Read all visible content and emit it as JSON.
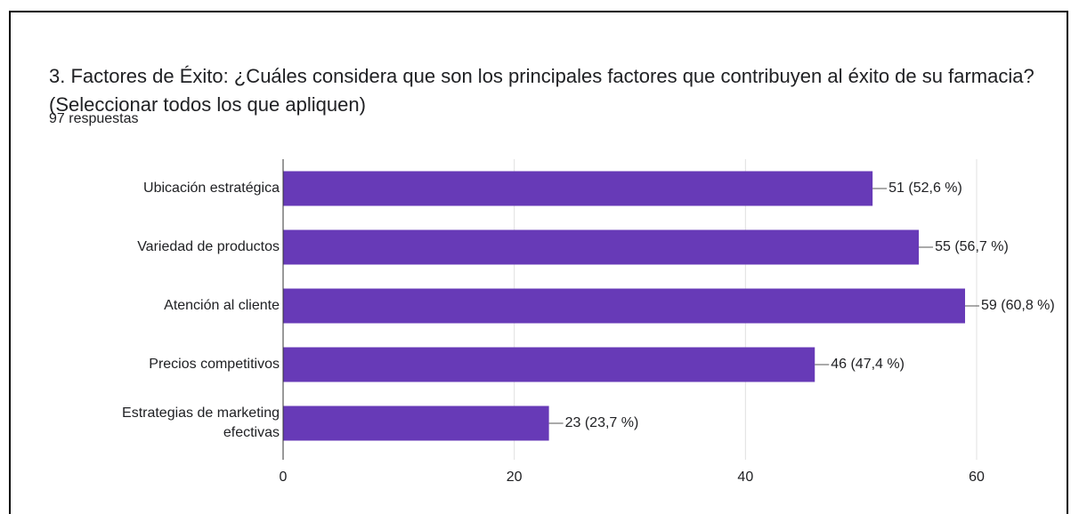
{
  "chart_data": {
    "type": "bar",
    "orientation": "horizontal",
    "title": "3. Factores de Éxito:   ¿Cuáles considera que son los principales factores que contribuyen al éxito de su farmacia? (Seleccionar todos los que apliquen)",
    "subtitle": "97 respuestas",
    "categories": [
      "Ubicación estratégica",
      "Variedad de productos",
      "Atención al cliente",
      "Precios competitivos",
      "Estrategias de marketing efectivas"
    ],
    "values": [
      51,
      55,
      59,
      46,
      23
    ],
    "value_labels": [
      "51 (52,6 %)",
      "55 (56,7 %)",
      "59 (60,8 %)",
      "46 (47,4 %)",
      "23 (23,7 %)"
    ],
    "color": "#673ab7",
    "xlim": [
      0,
      60
    ],
    "xticks": [
      0,
      20,
      40,
      60
    ],
    "grid": true
  }
}
